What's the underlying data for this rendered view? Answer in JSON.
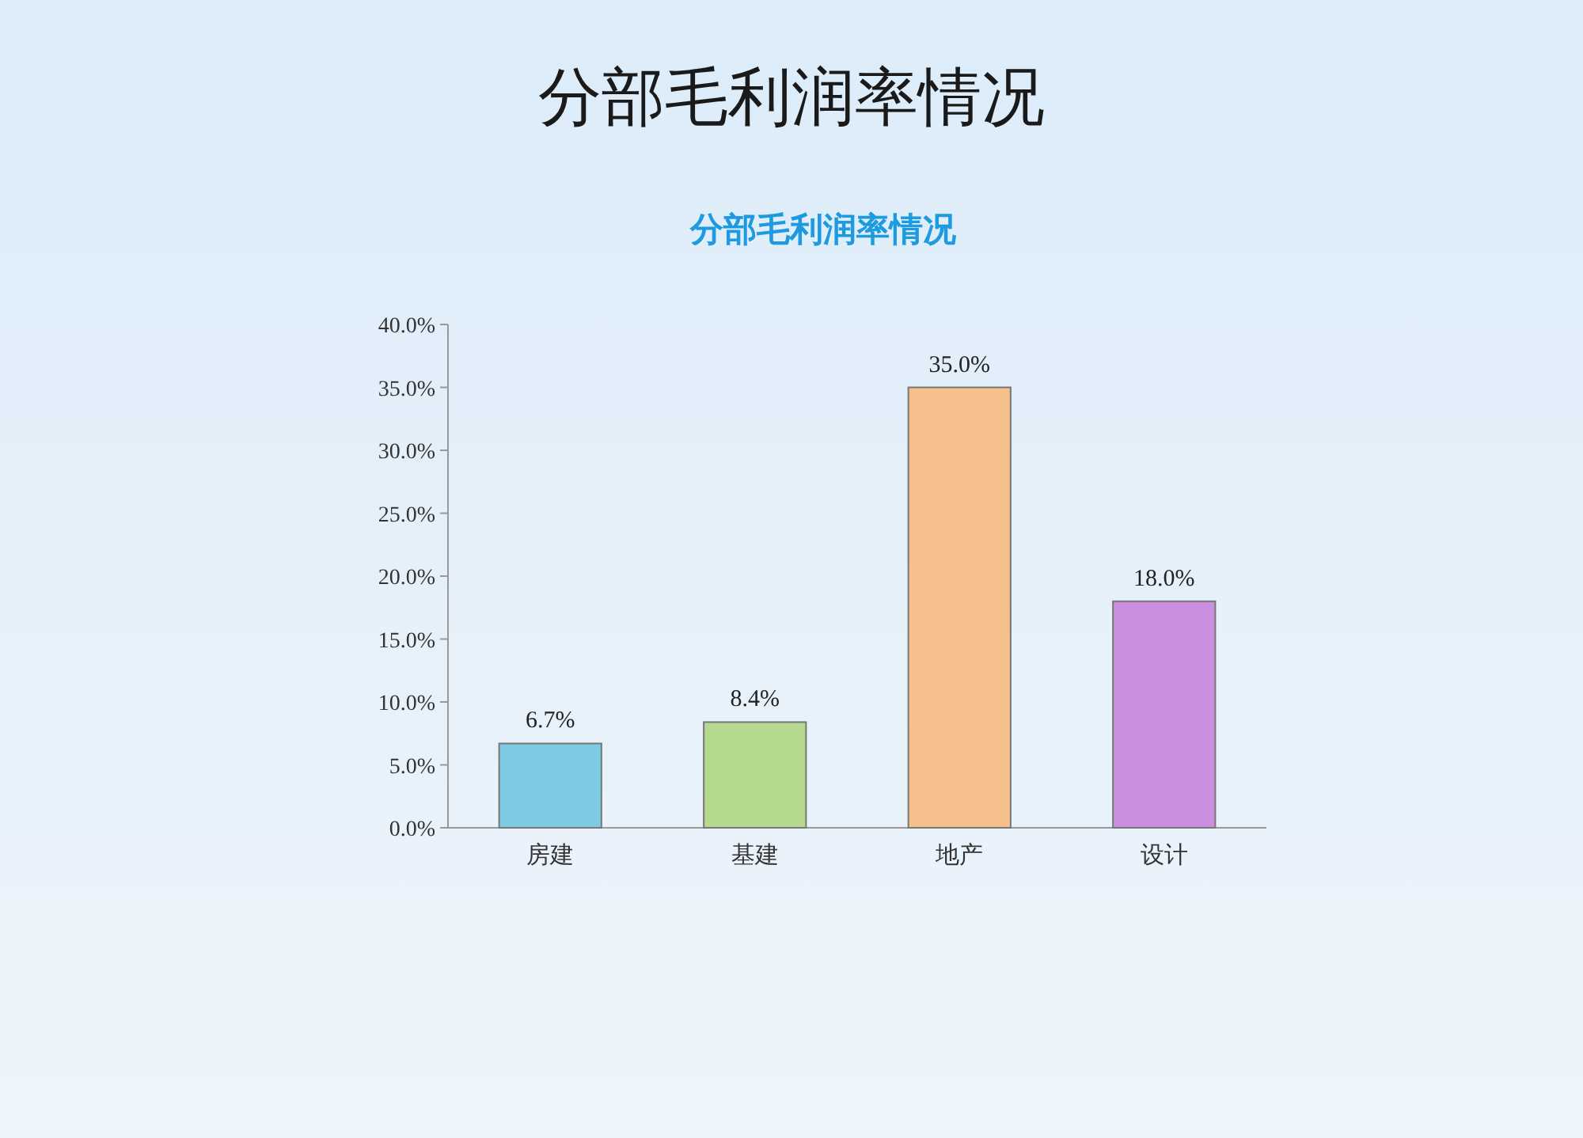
{
  "chart_data": {
    "type": "bar",
    "title": "分部毛利润率情况",
    "subtitle": "分部毛利润率情况",
    "categories": [
      "房建",
      "基建",
      "地产",
      "设计"
    ],
    "values": [
      6.7,
      8.4,
      35.0,
      18.0
    ],
    "colors": [
      "#7ccbe3",
      "#b5d98f",
      "#f5c08c",
      "#cc8fe0"
    ],
    "value_labels": [
      "6.7%",
      "8.4%",
      "35.0%",
      "18.0%"
    ],
    "ylim": [
      0,
      40
    ],
    "yticks": [
      {
        "value": 0,
        "label": "0.0%"
      },
      {
        "value": 5,
        "label": "5.0%"
      },
      {
        "value": 10,
        "label": "10.0%"
      },
      {
        "value": 15,
        "label": "15.0%"
      },
      {
        "value": 20,
        "label": "20.0%"
      },
      {
        "value": 25,
        "label": "25.0%"
      },
      {
        "value": 30,
        "label": "30.0%"
      },
      {
        "value": 35,
        "label": "35.0%"
      },
      {
        "value": 40,
        "label": "40.0%"
      }
    ],
    "grid": false
  }
}
